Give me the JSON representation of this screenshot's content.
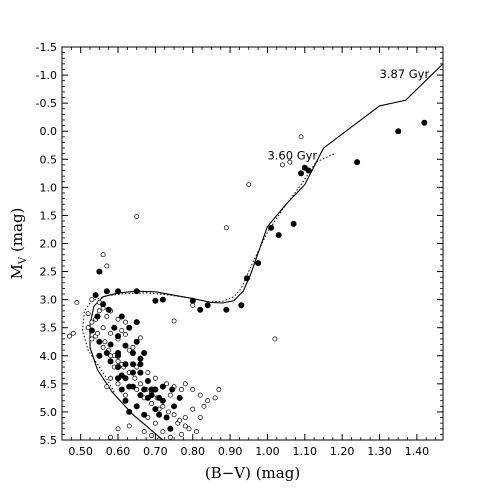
{
  "chart_data": {
    "type": "scatter",
    "xlabel": "(B−V) (mag)",
    "ylabel_main": "M",
    "ylabel_sub": "V",
    "ylabel_unit": " (mag)",
    "xlim": [
      0.45,
      1.47
    ],
    "ylim": [
      5.5,
      -1.5
    ],
    "y_inverted": true,
    "grid": false,
    "xticks": [
      "0.50",
      "0.60",
      "0.70",
      "0.80",
      "0.90",
      "1.00",
      "1.10",
      "1.20",
      "1.30",
      "1.40"
    ],
    "xtick_values": [
      0.5,
      0.6,
      0.7,
      0.8,
      0.9,
      1.0,
      1.1,
      1.2,
      1.3,
      1.4
    ],
    "yticks": [
      "-1.5",
      "-1.0",
      "-0.5",
      "0.0",
      "0.5",
      "1.0",
      "1.5",
      "2.0",
      "2.5",
      "3.0",
      "3.5",
      "4.0",
      "4.5",
      "5.0",
      "5.5"
    ],
    "ytick_values": [
      -1.5,
      -1.0,
      -0.5,
      0.0,
      0.5,
      1.0,
      1.5,
      2.0,
      2.5,
      3.0,
      3.5,
      4.0,
      4.5,
      5.0,
      5.5
    ],
    "annotations": [
      {
        "text": "3.87 Gyr",
        "x": 1.3,
        "y": -0.95
      },
      {
        "text": "3.60 Gyr",
        "x": 1.0,
        "y": 0.5
      }
    ],
    "series": [
      {
        "style": "solid-line",
        "points": [
          [
            0.72,
            5.5
          ],
          [
            0.64,
            5.05
          ],
          [
            0.585,
            4.65
          ],
          [
            0.545,
            4.25
          ],
          [
            0.525,
            3.85
          ],
          [
            0.525,
            3.45
          ],
          [
            0.535,
            3.12
          ],
          [
            0.56,
            2.95
          ],
          [
            0.6,
            2.88
          ],
          [
            0.65,
            2.85
          ],
          [
            0.7,
            2.86
          ],
          [
            0.75,
            2.92
          ],
          [
            0.8,
            2.98
          ],
          [
            0.85,
            3.05
          ],
          [
            0.88,
            3.06
          ],
          [
            0.91,
            3.02
          ],
          [
            0.935,
            2.85
          ],
          [
            0.955,
            2.55
          ],
          [
            1.0,
            1.7
          ],
          [
            1.05,
            1.3
          ],
          [
            1.1,
            0.95
          ],
          [
            1.15,
            0.3
          ],
          [
            1.22,
            -0.05
          ],
          [
            1.3,
            -0.45
          ],
          [
            1.37,
            -0.55
          ],
          [
            1.47,
            -1.2
          ]
        ]
      },
      {
        "style": "dotted-line",
        "points": [
          [
            0.59,
            4.65
          ],
          [
            0.56,
            4.3
          ],
          [
            0.52,
            3.9
          ],
          [
            0.505,
            3.55
          ],
          [
            0.51,
            3.2
          ],
          [
            0.53,
            3.02
          ],
          [
            0.57,
            2.93
          ],
          [
            0.62,
            2.89
          ],
          [
            0.68,
            2.88
          ],
          [
            0.74,
            2.92
          ],
          [
            0.8,
            2.98
          ],
          [
            0.84,
            3.04
          ],
          [
            0.88,
            3.03
          ],
          [
            0.91,
            2.95
          ],
          [
            0.93,
            2.8
          ],
          [
            0.96,
            2.35
          ],
          [
            1.0,
            1.8
          ],
          [
            1.04,
            1.4
          ],
          [
            1.09,
            0.95
          ],
          [
            1.13,
            0.55
          ],
          [
            1.18,
            0.4
          ]
        ]
      },
      {
        "style": "filled-circle",
        "points": [
          [
            1.42,
            -0.15
          ],
          [
            1.35,
            0.0
          ],
          [
            1.24,
            0.55
          ],
          [
            1.1,
            0.65
          ],
          [
            1.09,
            0.75
          ],
          [
            1.11,
            0.7
          ],
          [
            1.07,
            1.65
          ],
          [
            1.01,
            1.72
          ],
          [
            1.03,
            1.85
          ],
          [
            0.975,
            2.35
          ],
          [
            0.945,
            2.62
          ],
          [
            0.93,
            3.1
          ],
          [
            0.89,
            3.18
          ],
          [
            0.82,
            3.18
          ],
          [
            0.8,
            3.02
          ],
          [
            0.84,
            3.1
          ],
          [
            0.72,
            3.0
          ],
          [
            0.7,
            3.02
          ],
          [
            0.65,
            2.85
          ],
          [
            0.6,
            2.85
          ],
          [
            0.57,
            2.85
          ],
          [
            0.55,
            2.5
          ],
          [
            0.54,
            2.92
          ],
          [
            0.56,
            3.08
          ],
          [
            0.575,
            3.18
          ],
          [
            0.545,
            3.3
          ],
          [
            0.53,
            3.55
          ],
          [
            0.55,
            3.75
          ],
          [
            0.55,
            4.0
          ],
          [
            0.58,
            4.1
          ],
          [
            0.6,
            4.2
          ],
          [
            0.61,
            4.35
          ],
          [
            0.6,
            4.4
          ],
          [
            0.63,
            4.55
          ],
          [
            0.62,
            4.8
          ],
          [
            0.65,
            4.9
          ],
          [
            0.67,
            5.05
          ],
          [
            0.63,
            5.0
          ],
          [
            0.64,
            4.15
          ],
          [
            0.66,
            4.3
          ],
          [
            0.68,
            4.45
          ],
          [
            0.7,
            4.6
          ],
          [
            0.72,
            4.8
          ],
          [
            0.75,
            4.9
          ],
          [
            0.71,
            5.05
          ],
          [
            0.74,
            5.3
          ],
          [
            0.69,
            4.6
          ],
          [
            0.6,
            3.65
          ],
          [
            0.62,
            3.82
          ],
          [
            0.64,
            3.95
          ],
          [
            0.66,
            4.05
          ],
          [
            0.59,
            3.5
          ],
          [
            0.61,
            3.3
          ],
          [
            0.63,
            3.5
          ],
          [
            0.67,
            3.95
          ],
          [
            0.65,
            3.75
          ],
          [
            0.57,
            3.95
          ],
          [
            0.58,
            3.8
          ],
          [
            0.6,
            3.95
          ],
          [
            0.62,
            4.15
          ],
          [
            0.64,
            4.55
          ],
          [
            0.66,
            4.7
          ],
          [
            0.68,
            4.75
          ],
          [
            0.7,
            4.95
          ],
          [
            0.73,
            5.1
          ],
          [
            0.765,
            4.75
          ],
          [
            0.745,
            4.6
          ],
          [
            0.72,
            4.55
          ],
          [
            0.71,
            4.75
          ],
          [
            0.69,
            4.7
          ],
          [
            0.67,
            4.6
          ],
          [
            0.61,
            4.6
          ],
          [
            0.6,
            4.0
          ],
          [
            0.62,
            4.4
          ],
          [
            0.64,
            4.3
          ],
          [
            0.65,
            3.4
          ],
          [
            0.66,
            4.15
          ]
        ]
      },
      {
        "style": "open-circle",
        "points": [
          [
            1.09,
            0.1
          ],
          [
            1.04,
            0.6
          ],
          [
            1.06,
            0.55
          ],
          [
            0.95,
            0.95
          ],
          [
            0.89,
            1.72
          ],
          [
            1.02,
            3.7
          ],
          [
            0.65,
            1.52
          ],
          [
            0.56,
            2.2
          ],
          [
            0.57,
            2.4
          ],
          [
            0.8,
            3.1
          ],
          [
            0.75,
            3.38
          ],
          [
            0.53,
            3.0
          ],
          [
            0.55,
            3.05
          ],
          [
            0.49,
            3.05
          ],
          [
            0.48,
            3.6
          ],
          [
            0.47,
            3.65
          ],
          [
            0.52,
            3.5
          ],
          [
            0.54,
            3.65
          ],
          [
            0.56,
            3.5
          ],
          [
            0.57,
            3.3
          ],
          [
            0.58,
            3.6
          ],
          [
            0.6,
            3.7
          ],
          [
            0.61,
            3.55
          ],
          [
            0.62,
            3.62
          ],
          [
            0.64,
            3.85
          ],
          [
            0.66,
            3.68
          ],
          [
            0.63,
            3.9
          ],
          [
            0.59,
            4.2
          ],
          [
            0.6,
            4.5
          ],
          [
            0.58,
            4.4
          ],
          [
            0.57,
            4.55
          ],
          [
            0.62,
            4.7
          ],
          [
            0.65,
            4.6
          ],
          [
            0.67,
            4.75
          ],
          [
            0.69,
            4.85
          ],
          [
            0.71,
            4.95
          ],
          [
            0.74,
            4.7
          ],
          [
            0.77,
            4.6
          ],
          [
            0.78,
            4.5
          ],
          [
            0.8,
            4.6
          ],
          [
            0.82,
            4.7
          ],
          [
            0.84,
            4.8
          ],
          [
            0.83,
            4.9
          ],
          [
            0.8,
            4.95
          ],
          [
            0.86,
            4.75
          ],
          [
            0.87,
            4.6
          ],
          [
            0.78,
            5.1
          ],
          [
            0.76,
            5.2
          ],
          [
            0.79,
            5.3
          ],
          [
            0.82,
            5.1
          ],
          [
            0.81,
            5.35
          ],
          [
            0.77,
            5.4
          ],
          [
            0.74,
            5.45
          ],
          [
            0.72,
            5.35
          ],
          [
            0.7,
            5.2
          ],
          [
            0.68,
            5.1
          ],
          [
            0.63,
            5.25
          ],
          [
            0.6,
            5.3
          ],
          [
            0.58,
            5.45
          ],
          [
            0.71,
            5.5
          ],
          [
            0.69,
            5.42
          ],
          [
            0.67,
            5.35
          ],
          [
            0.53,
            3.4
          ],
          [
            0.52,
            3.25
          ],
          [
            0.545,
            3.6
          ],
          [
            0.565,
            3.75
          ],
          [
            0.575,
            3.9
          ],
          [
            0.59,
            4.0
          ],
          [
            0.6,
            4.1
          ],
          [
            0.615,
            4.2
          ],
          [
            0.63,
            4.3
          ],
          [
            0.645,
            4.4
          ],
          [
            0.66,
            4.5
          ],
          [
            0.675,
            4.6
          ],
          [
            0.69,
            4.65
          ],
          [
            0.705,
            4.75
          ],
          [
            0.72,
            4.9
          ],
          [
            0.735,
            5.0
          ],
          [
            0.75,
            5.05
          ],
          [
            0.765,
            5.15
          ],
          [
            0.78,
            5.25
          ],
          [
            0.62,
            3.4
          ],
          [
            0.6,
            3.35
          ],
          [
            0.58,
            3.2
          ],
          [
            0.56,
            3.15
          ],
          [
            0.55,
            3.2
          ],
          [
            0.54,
            3.35
          ],
          [
            0.53,
            3.7
          ],
          [
            0.56,
            3.85
          ],
          [
            0.58,
            4.0
          ],
          [
            0.61,
            4.15
          ],
          [
            0.65,
            4.2
          ],
          [
            0.68,
            4.3
          ],
          [
            0.7,
            4.4
          ],
          [
            0.73,
            4.5
          ],
          [
            0.75,
            4.55
          ]
        ]
      }
    ]
  }
}
